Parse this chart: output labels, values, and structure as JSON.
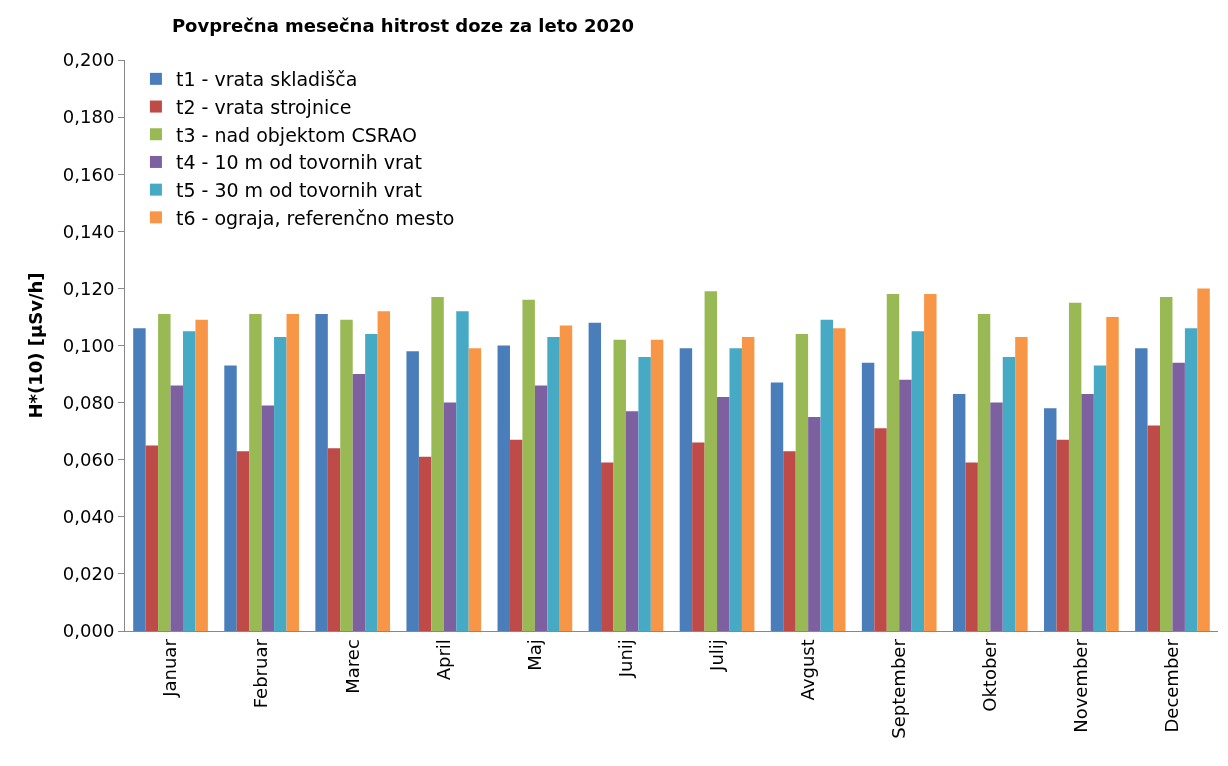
{
  "chart_data": {
    "type": "bar",
    "title": "Povprečna mesečna hitrost doze za leto 2020",
    "ylabel": "H*(10) [µSv/h]",
    "categories": [
      "Januar",
      "Februar",
      "Marec",
      "April",
      "Maj",
      "Junij",
      "Julij",
      "Avgust",
      "September",
      "Oktober",
      "November",
      "December"
    ],
    "series": [
      {
        "name": "t1 - vrata skladišča",
        "color": "#4a7ebb",
        "values": [
          0.106,
          0.093,
          0.111,
          0.098,
          0.1,
          0.108,
          0.099,
          0.087,
          0.094,
          0.083,
          0.078,
          0.099
        ]
      },
      {
        "name": "t2 - vrata strojnice",
        "color": "#be4b48",
        "values": [
          0.065,
          0.063,
          0.064,
          0.061,
          0.067,
          0.059,
          0.066,
          0.063,
          0.071,
          0.059,
          0.067,
          0.072
        ]
      },
      {
        "name": "t3 - nad objektom CSRAO",
        "color": "#98b954",
        "values": [
          0.111,
          0.111,
          0.109,
          0.117,
          0.116,
          0.102,
          0.119,
          0.104,
          0.118,
          0.111,
          0.115,
          0.117
        ]
      },
      {
        "name": "t4 - 10 m od tovornih vrat",
        "color": "#7d60a0",
        "values": [
          0.086,
          0.079,
          0.09,
          0.08,
          0.086,
          0.077,
          0.082,
          0.075,
          0.088,
          0.08,
          0.083,
          0.094
        ]
      },
      {
        "name": "t5 - 30 m od tovornih vrat",
        "color": "#46aac5",
        "values": [
          0.105,
          0.103,
          0.104,
          0.112,
          0.103,
          0.096,
          0.099,
          0.109,
          0.105,
          0.096,
          0.093,
          0.106
        ]
      },
      {
        "name": "t6 - ograja, referenčno mesto",
        "color": "#f79646",
        "values": [
          0.109,
          0.111,
          0.112,
          0.099,
          0.107,
          0.102,
          0.103,
          0.106,
          0.118,
          0.103,
          0.11,
          0.12
        ]
      }
    ],
    "ylim": [
      0,
      0.2
    ],
    "yticks": [
      {
        "value": 0,
        "label": "0,000"
      },
      {
        "value": 0.02,
        "label": "0,020"
      },
      {
        "value": 0.04,
        "label": "0,040"
      },
      {
        "value": 0.06,
        "label": "0,060"
      },
      {
        "value": 0.08,
        "label": "0,080"
      },
      {
        "value": 0.1,
        "label": "0,100"
      },
      {
        "value": 0.12,
        "label": "0,120"
      },
      {
        "value": 0.14,
        "label": "0,140"
      },
      {
        "value": 0.16,
        "label": "0,160"
      },
      {
        "value": 0.18,
        "label": "0,180"
      },
      {
        "value": 0.2,
        "label": "0,200"
      }
    ],
    "legend": "top left"
  }
}
